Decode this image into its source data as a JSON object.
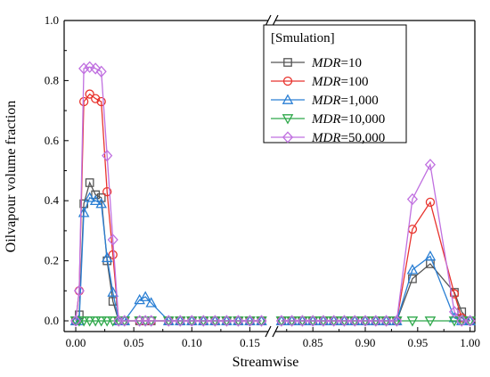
{
  "chart_data": {
    "type": "line",
    "title": "",
    "xlabel": "Streamwise",
    "ylabel": "Oilvapour volume fraction",
    "ylim": [
      0,
      1.0
    ],
    "y_ticks": [
      "0.0",
      "0.2",
      "0.4",
      "0.6",
      "0.8",
      "1.0"
    ],
    "x_ticks_left": [
      "0.00",
      "0.05",
      "0.10",
      "0.15"
    ],
    "x_ticks_right": [
      "0.85",
      "0.90",
      "0.95",
      "1.00"
    ],
    "x_break": {
      "left_end": 0.165,
      "right_start": 0.815
    },
    "x_segments": {
      "left": [
        -0.01,
        0.165
      ],
      "right": [
        0.815,
        1.002
      ]
    },
    "grid": false,
    "legend_placement": "top-right",
    "legend_title": "[Smulation]",
    "series": [
      {
        "name_prefix": "MDR",
        "name_suffix": "=10",
        "marker": "square",
        "color": "#555555",
        "x": [
          0.0,
          0.003,
          0.007,
          0.012,
          0.017,
          0.022,
          0.027,
          0.032,
          0.037,
          0.042,
          0.055,
          0.06,
          0.065,
          0.08,
          0.09,
          0.1,
          0.11,
          0.12,
          0.13,
          0.14,
          0.15,
          0.16,
          0.82,
          0.83,
          0.84,
          0.85,
          0.86,
          0.87,
          0.88,
          0.89,
          0.9,
          0.91,
          0.92,
          0.93,
          0.945,
          0.962,
          0.985,
          0.992,
          1.0
        ],
        "y": [
          0.0,
          0.02,
          0.39,
          0.46,
          0.42,
          0.41,
          0.2,
          0.065,
          0.0,
          0.0,
          0.0,
          0.0,
          0.0,
          0.0,
          0.0,
          0.0,
          0.0,
          0.0,
          0.0,
          0.0,
          0.0,
          0.0,
          0.0,
          0.0,
          0.0,
          0.0,
          0.0,
          0.0,
          0.0,
          0.0,
          0.0,
          0.0,
          0.0,
          0.0,
          0.14,
          0.19,
          0.095,
          0.03,
          0.0
        ]
      },
      {
        "name_prefix": "MDR",
        "name_suffix": "=100",
        "marker": "circle",
        "color": "#e8332d",
        "x": [
          0.0,
          0.003,
          0.007,
          0.012,
          0.017,
          0.022,
          0.027,
          0.032,
          0.037,
          0.042,
          0.055,
          0.06,
          0.065,
          0.08,
          0.09,
          0.1,
          0.11,
          0.12,
          0.13,
          0.14,
          0.15,
          0.16,
          0.82,
          0.83,
          0.84,
          0.85,
          0.86,
          0.87,
          0.88,
          0.89,
          0.9,
          0.91,
          0.92,
          0.93,
          0.945,
          0.962,
          0.985,
          0.992,
          1.0
        ],
        "y": [
          0.0,
          0.1,
          0.73,
          0.755,
          0.74,
          0.73,
          0.43,
          0.22,
          0.0,
          0.0,
          0.0,
          0.0,
          0.0,
          0.0,
          0.0,
          0.0,
          0.0,
          0.0,
          0.0,
          0.0,
          0.0,
          0.0,
          0.0,
          0.0,
          0.0,
          0.0,
          0.0,
          0.0,
          0.0,
          0.0,
          0.0,
          0.0,
          0.0,
          0.0,
          0.305,
          0.395,
          0.09,
          0.01,
          0.0
        ]
      },
      {
        "name_prefix": "MDR",
        "name_suffix": "=1,000",
        "marker": "triangle-up",
        "color": "#2a7fd4",
        "x": [
          0.0,
          0.003,
          0.007,
          0.012,
          0.017,
          0.022,
          0.027,
          0.032,
          0.037,
          0.042,
          0.055,
          0.06,
          0.065,
          0.08,
          0.09,
          0.1,
          0.11,
          0.12,
          0.13,
          0.14,
          0.15,
          0.16,
          0.82,
          0.83,
          0.84,
          0.85,
          0.86,
          0.87,
          0.88,
          0.89,
          0.9,
          0.91,
          0.92,
          0.93,
          0.945,
          0.962,
          0.985,
          0.992,
          1.0
        ],
        "y": [
          0.0,
          0.0,
          0.36,
          0.41,
          0.4,
          0.39,
          0.21,
          0.095,
          0.0,
          0.0,
          0.07,
          0.08,
          0.06,
          0.0,
          0.0,
          0.0,
          0.0,
          0.0,
          0.0,
          0.0,
          0.0,
          0.0,
          0.0,
          0.0,
          0.0,
          0.0,
          0.0,
          0.0,
          0.0,
          0.0,
          0.0,
          0.0,
          0.0,
          0.0,
          0.17,
          0.215,
          0.01,
          0.0,
          0.0
        ]
      },
      {
        "name_prefix": "MDR",
        "name_suffix": "=10,000",
        "marker": "triangle-down",
        "color": "#2ea84a",
        "x": [
          0.0,
          0.003,
          0.007,
          0.012,
          0.017,
          0.022,
          0.027,
          0.032,
          0.037,
          0.042,
          0.055,
          0.06,
          0.065,
          0.08,
          0.09,
          0.1,
          0.11,
          0.12,
          0.13,
          0.14,
          0.15,
          0.16,
          0.82,
          0.83,
          0.84,
          0.85,
          0.86,
          0.87,
          0.88,
          0.89,
          0.9,
          0.91,
          0.92,
          0.93,
          0.945,
          0.962,
          0.985,
          0.992,
          1.0
        ],
        "y": [
          0.0,
          0.0,
          0.0,
          0.0,
          0.0,
          0.0,
          0.0,
          0.0,
          0.0,
          0.0,
          0.0,
          0.0,
          0.0,
          0.0,
          0.0,
          0.0,
          0.0,
          0.0,
          0.0,
          0.0,
          0.0,
          0.0,
          0.0,
          0.0,
          0.0,
          0.0,
          0.0,
          0.0,
          0.0,
          0.0,
          0.0,
          0.0,
          0.0,
          0.0,
          0.0,
          0.0,
          0.0,
          0.0,
          0.0
        ]
      },
      {
        "name_prefix": "MDR",
        "name_suffix": "=50,000",
        "marker": "diamond",
        "color": "#c070e0",
        "x": [
          0.0,
          0.003,
          0.007,
          0.012,
          0.017,
          0.022,
          0.027,
          0.032,
          0.037,
          0.042,
          0.055,
          0.06,
          0.065,
          0.08,
          0.09,
          0.1,
          0.11,
          0.12,
          0.13,
          0.14,
          0.15,
          0.16,
          0.82,
          0.83,
          0.84,
          0.85,
          0.86,
          0.87,
          0.88,
          0.89,
          0.9,
          0.91,
          0.92,
          0.93,
          0.945,
          0.962,
          0.985,
          0.992,
          1.0
        ],
        "y": [
          0.0,
          0.1,
          0.84,
          0.845,
          0.84,
          0.83,
          0.55,
          0.27,
          0.0,
          0.0,
          0.0,
          0.0,
          0.0,
          0.0,
          0.0,
          0.0,
          0.0,
          0.0,
          0.0,
          0.0,
          0.0,
          0.0,
          0.0,
          0.0,
          0.0,
          0.0,
          0.0,
          0.0,
          0.0,
          0.0,
          0.0,
          0.0,
          0.0,
          0.0,
          0.405,
          0.52,
          0.03,
          0.0,
          0.0
        ]
      }
    ]
  }
}
